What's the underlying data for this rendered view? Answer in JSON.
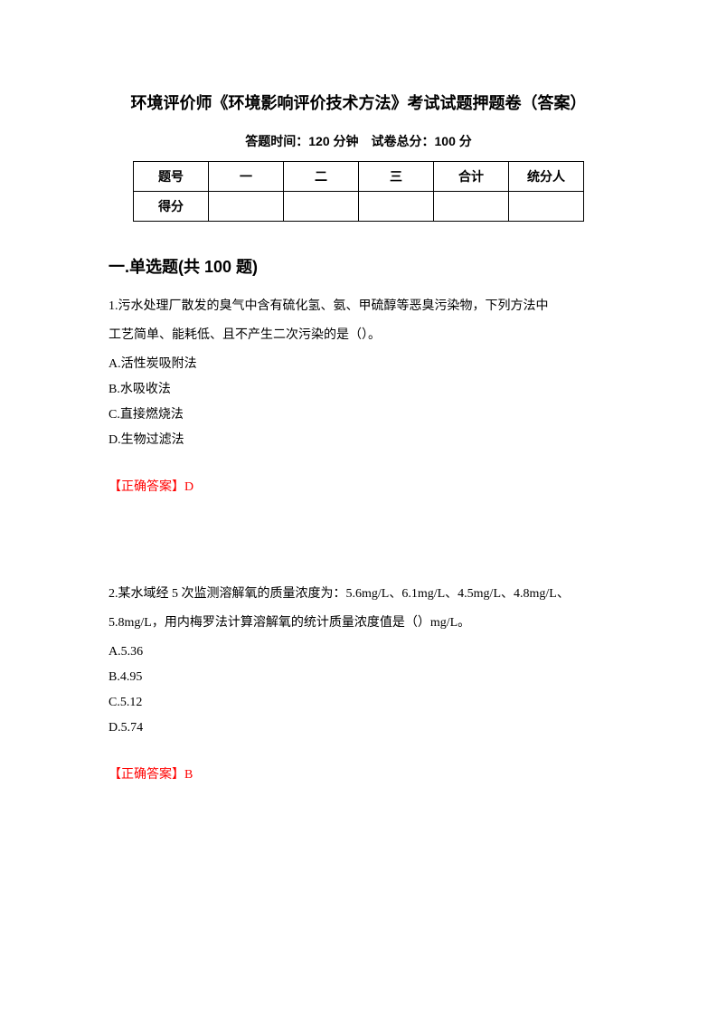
{
  "title": "环境评价师《环境影响评价技术方法》考试试题押题卷（答案）",
  "info_line": "答题时间：120 分钟 试卷总分：100 分",
  "score_table": {
    "row1": [
      "题号",
      "一",
      "二",
      "三",
      "合计",
      "统分人"
    ],
    "row2": [
      "得分",
      "",
      "",
      "",
      "",
      ""
    ]
  },
  "section_title": "一.单选题(共 100 题)",
  "q1": {
    "text1": "1.污水处理厂散发的臭气中含有硫化氢、氨、甲硫醇等恶臭污染物，下列方法中",
    "text2": "工艺简单、能耗低、且不产生二次污染的是（）。",
    "optA": "A.活性炭吸附法",
    "optB": "B.水吸收法",
    "optC": "C.直接燃烧法",
    "optD": "D.生物过滤法",
    "answer": "【正确答案】D"
  },
  "q2": {
    "text1": "2.某水域经 5 次监测溶解氧的质量浓度为：5.6mg/L、6.1mg/L、4.5mg/L、4.8mg/L、",
    "text2": "5.8mg/L，用内梅罗法计算溶解氧的统计质量浓度值是（）mg/L。",
    "optA": "A.5.36",
    "optB": "B.4.95",
    "optC": "C.5.12",
    "optD": "D.5.74",
    "answer": "【正确答案】B"
  }
}
